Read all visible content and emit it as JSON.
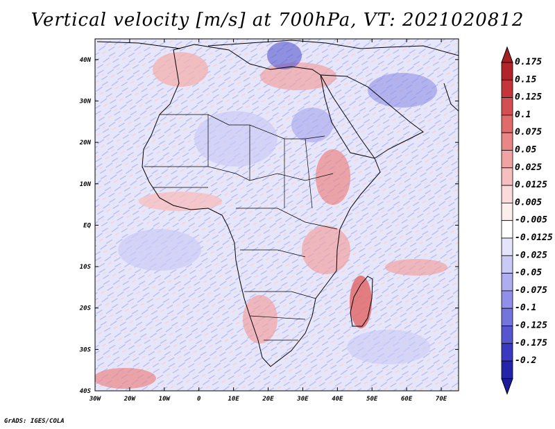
{
  "title": "Vertical velocity [m/s] at 700hPa, VT: 2021020812",
  "footer": "GrADS: IGES/COLA",
  "map": {
    "region": "Africa",
    "lon_range": [
      -30,
      75
    ],
    "lat_range": [
      -40,
      45
    ],
    "x_ticks": [
      {
        "value": -30,
        "label": "30W"
      },
      {
        "value": -20,
        "label": "20W"
      },
      {
        "value": -10,
        "label": "10W"
      },
      {
        "value": 0,
        "label": "0"
      },
      {
        "value": 10,
        "label": "10E"
      },
      {
        "value": 20,
        "label": "20E"
      },
      {
        "value": 30,
        "label": "30E"
      },
      {
        "value": 40,
        "label": "40E"
      },
      {
        "value": 50,
        "label": "50E"
      },
      {
        "value": 60,
        "label": "60E"
      },
      {
        "value": 70,
        "label": "70E"
      }
    ],
    "y_ticks": [
      {
        "value": 40,
        "label": "40N"
      },
      {
        "value": 30,
        "label": "30N"
      },
      {
        "value": 20,
        "label": "20N"
      },
      {
        "value": 10,
        "label": "10N"
      },
      {
        "value": 0,
        "label": "EQ"
      },
      {
        "value": -10,
        "label": "10S"
      },
      {
        "value": -20,
        "label": "20S"
      },
      {
        "value": -30,
        "label": "30S"
      },
      {
        "value": -40,
        "label": "40S"
      }
    ]
  },
  "colorbar": {
    "levels": [
      {
        "label": "0.175",
        "color": "#b3232a"
      },
      {
        "label": "0.15",
        "color": "#c4353b"
      },
      {
        "label": "0.125",
        "color": "#d44f52"
      },
      {
        "label": "0.1",
        "color": "#e06b6b"
      },
      {
        "label": "0.075",
        "color": "#e98686"
      },
      {
        "label": "0.05",
        "color": "#f0a3a3"
      },
      {
        "label": "0.025",
        "color": "#f6bfbf"
      },
      {
        "label": "0.0125",
        "color": "#fadada"
      },
      {
        "label": "0.005",
        "color": "#fdeeee"
      },
      {
        "label": "-0.005",
        "color": "#ffffff"
      },
      {
        "label": "-0.0125",
        "color": "#e4e4fb"
      },
      {
        "label": "-0.025",
        "color": "#cacaf6"
      },
      {
        "label": "-0.05",
        "color": "#adadf0"
      },
      {
        "label": "-0.075",
        "color": "#9090e8"
      },
      {
        "label": "-0.1",
        "color": "#7474dd"
      },
      {
        "label": "-0.125",
        "color": "#5656cf"
      },
      {
        "label": "-0.175",
        "color": "#3a3ac0"
      },
      {
        "label": "-0.2",
        "color": "#2424ab"
      }
    ],
    "top_color": "#a51e24",
    "bottom_color": "#1c1c9a"
  }
}
